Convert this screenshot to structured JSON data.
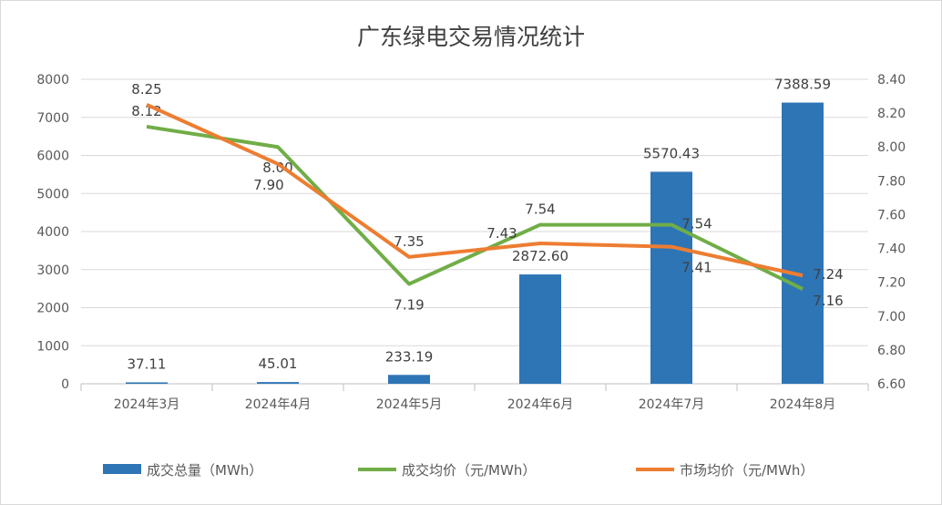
{
  "chart_data": {
    "type": "bar+line",
    "title": "广东绿电交易情况统计",
    "categories": [
      "2024年3月",
      "2024年4月",
      "2024年5月",
      "2024年6月",
      "2024年7月",
      "2024年8月"
    ],
    "series": [
      {
        "name": "成交总量（MWh）",
        "type": "bar",
        "axis": "left",
        "color": "#2e75b6",
        "values": [
          37.11,
          45.01,
          233.19,
          2872.6,
          5570.43,
          7388.59
        ],
        "labels": [
          "37.11",
          "45.01",
          "233.19",
          "2872.60",
          "5570.43",
          "7388.59"
        ]
      },
      {
        "name": "成交均价（元/MWh）",
        "type": "line",
        "axis": "right",
        "color": "#70ad47",
        "values": [
          8.12,
          8.0,
          7.19,
          7.54,
          7.54,
          7.16
        ],
        "labels": [
          "8.12",
          "8.00",
          "7.19",
          "7.54",
          "7.54",
          "7.16"
        ]
      },
      {
        "name": "市场均价（元/MWh）",
        "type": "line",
        "axis": "right",
        "color": "#ed7d31",
        "values": [
          8.25,
          7.9,
          7.35,
          7.43,
          7.41,
          7.24
        ],
        "labels": [
          "8.25",
          "7.90",
          "7.35",
          "7.43",
          "7.41",
          "7.24"
        ]
      }
    ],
    "left_axis": {
      "range": [
        0,
        8000
      ],
      "ticks": [
        "0",
        "1000",
        "2000",
        "3000",
        "4000",
        "5000",
        "6000",
        "7000",
        "8000"
      ]
    },
    "right_axis": {
      "range": [
        6.6,
        8.4
      ],
      "ticks": [
        "6.60",
        "6.80",
        "7.00",
        "7.20",
        "7.40",
        "7.60",
        "7.80",
        "8.00",
        "8.20",
        "8.40"
      ]
    },
    "grid": true,
    "legend_position": "bottom"
  }
}
